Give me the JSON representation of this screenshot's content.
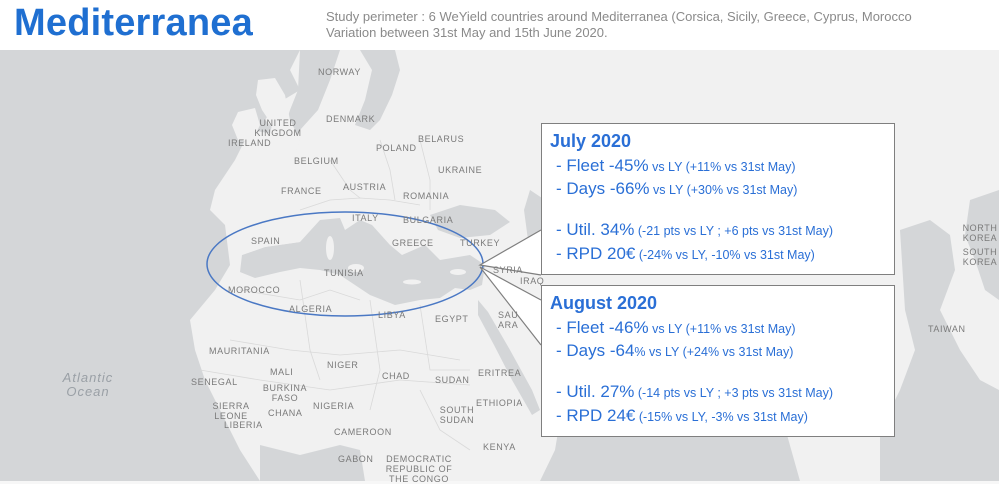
{
  "header": {
    "title": "Mediterranea",
    "subtitle_line1": "Study perimeter : 6 WeYield countries around Mediterranea (Corsica, Sicily, Greece, Cyprus, Morocco",
    "subtitle_line2": "Variation between 31st May and 15th June 2020."
  },
  "map": {
    "labels": {
      "norway": "NORWAY",
      "denmark": "DENMARK",
      "united_kingdom": "UNITED\nKINGDOM",
      "ireland": "IRELAND",
      "belarus": "BELARUS",
      "poland": "POLAND",
      "belgium": "BELGIUM",
      "ukraine": "UKRAINE",
      "france": "FRANCE",
      "austria": "AUSTRIA",
      "romania": "ROMANIA",
      "italy": "ITALY",
      "bulgaria": "BULGARIA",
      "spain": "SPAIN",
      "greece": "GREECE",
      "turkey": "TURKEY",
      "tunisia": "TUNISIA",
      "syria": "SYRIA",
      "iraq": "IRAQ",
      "morocco": "MOROCCO",
      "algeria": "ALGERIA",
      "libya": "LIBYA",
      "egypt": "EGYPT",
      "saudi_arabia": "SAU\nARA",
      "mauritania": "MAURITANIA",
      "mali": "MALI",
      "niger": "NIGER",
      "chad": "CHAD",
      "sudan": "SUDAN",
      "eritrea": "ERITREA",
      "senegal": "SENEGAL",
      "burkina_faso": "BURKINA\nFASO",
      "sierra_leone": "SIERRA\nLEONE",
      "liberia": "LIBERIA",
      "chana": "CHANA",
      "nigeria": "NIGERIA",
      "ethiopia": "ETHIOPIA",
      "south_sudan": "SOUTH\nSUDAN",
      "cameroon": "CAMEROON",
      "kenya": "KENYA",
      "gabon": "GABON",
      "dr_congo": "DEMOCRATIC\nREPUBLIC OF\nTHE CONGO",
      "north_korea": "NORTH\nKOREA",
      "south_korea": "SOUTH\nKOREA",
      "taiwan": "TAIWAN",
      "atlantic_ocean": "Atlantic\nOcean"
    }
  },
  "callouts": [
    {
      "period": "July 2020",
      "rows": [
        {
          "big": "-  Fleet -45%",
          "small": " vs LY (+11% vs  31st May)"
        },
        {
          "big": "-  Days -66%",
          "small": " vs LY (+30% vs  31st May)"
        },
        {
          "big": "-  Util. 34%",
          "small": " (-21 pts vs LY ; +6 pts vs  31st May)"
        },
        {
          "big": "-  RPD 20€",
          "small": " (-24% vs LY, -10% vs  31st May)"
        }
      ]
    },
    {
      "period": "August 2020",
      "rows": [
        {
          "big": "-  Fleet -46%",
          "small": " vs LY (+11% vs  31st May)"
        },
        {
          "big": "-  Days -64",
          "small": "% vs LY (+24% vs  31st May)"
        },
        {
          "big": "-  Util. 27%",
          "small": " (-14 pts vs LY ; +3 pts vs  31st May)"
        },
        {
          "big": "-  RPD 24€",
          "small": " (-15% vs LY, -3% vs  31st May)"
        }
      ]
    }
  ],
  "colors": {
    "title": "#1f6fd1",
    "callout_text": "#2a6fd6",
    "ellipse": "#4a78c4",
    "land": "#f1f1f1",
    "water": "#d4d6d8"
  }
}
